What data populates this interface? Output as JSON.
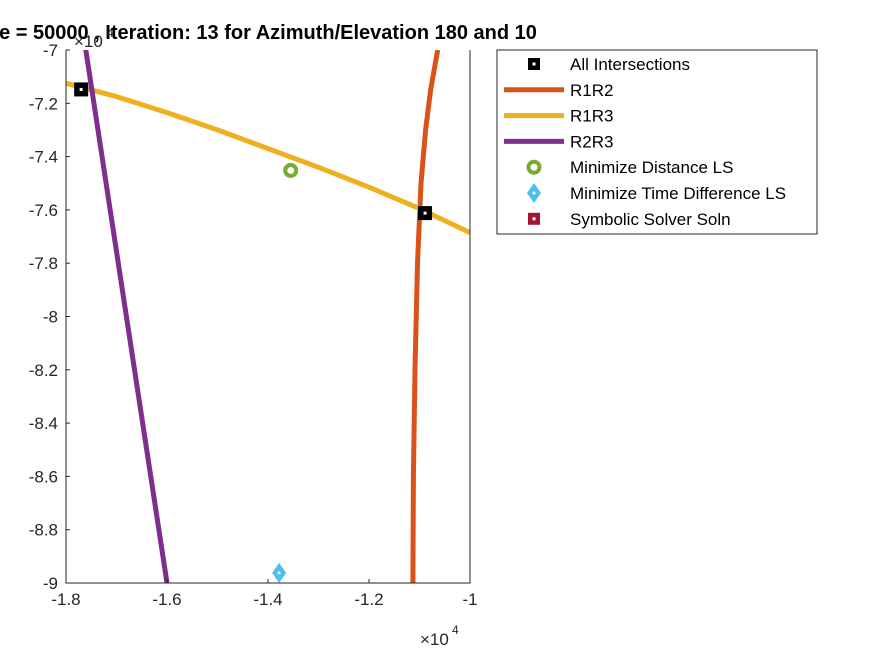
{
  "chart_data": {
    "type": "line",
    "title": "e = 50000 , Iteration: 13 for Azimuth/Elevation 180 and 10",
    "xlabel": "",
    "ylabel": "",
    "xlim": [
      -1.8,
      -1.0
    ],
    "ylim": [
      -9.0,
      -7.0
    ],
    "x_exponent": {
      "base": "×10",
      "power": "4"
    },
    "y_exponent": {
      "base": "×10",
      "power": "4"
    },
    "x_ticks": [
      "-1.8",
      "-1.6",
      "-1.4",
      "-1.2",
      "-1"
    ],
    "x_tick_values": [
      -1.8,
      -1.6,
      -1.4,
      -1.2,
      -1.0
    ],
    "y_ticks": [
      "-7",
      "-7.2",
      "-7.4",
      "-7.6",
      "-7.8",
      "-8",
      "-8.2",
      "-8.4",
      "-8.6",
      "-8.8",
      "-9"
    ],
    "y_tick_values": [
      -7.0,
      -7.2,
      -7.4,
      -7.6,
      -7.8,
      -8.0,
      -8.2,
      -8.4,
      -8.6,
      -8.8,
      -9.0
    ],
    "grid": false,
    "legend_position": "outside-top-right",
    "series": [
      {
        "name": "R1R2",
        "kind": "line",
        "color": "#D95319",
        "x": [
          -1.113,
          -1.112,
          -1.109,
          -1.104,
          -1.097,
          -1.088,
          -1.078,
          -1.064
        ],
        "y": [
          -9.0,
          -8.6,
          -8.2,
          -7.8,
          -7.5,
          -7.3,
          -7.15,
          -7.0
        ]
      },
      {
        "name": "R1R3",
        "kind": "line",
        "color": "#EDB120",
        "x": [
          -1.8,
          -1.7,
          -1.6,
          -1.5,
          -1.4,
          -1.3,
          -1.2,
          -1.1,
          -1.0
        ],
        "y": [
          -7.125,
          -7.175,
          -7.235,
          -7.3,
          -7.37,
          -7.44,
          -7.515,
          -7.595,
          -7.685
        ]
      },
      {
        "name": "R2R3",
        "kind": "line",
        "color": "#7E2F8E",
        "x": [
          -1.762,
          -1.6
        ],
        "y": [
          -6.985,
          -9.0
        ]
      },
      {
        "name": "All Intersections",
        "kind": "marker",
        "marker": "square",
        "color": "#000000",
        "x": [
          -1.77,
          -1.089
        ],
        "y": [
          -7.148,
          -7.612
        ]
      },
      {
        "name": "Minimize Distance LS",
        "kind": "marker",
        "marker": "circle",
        "color": "#77AC30",
        "x": [
          -1.355
        ],
        "y": [
          -7.452
        ]
      },
      {
        "name": "Minimize Time Difference LS",
        "kind": "marker",
        "marker": "diamond",
        "color": "#4DBEEE",
        "x": [
          -1.378
        ],
        "y": [
          -8.962
        ]
      },
      {
        "name": "Symbolic Solver Soln",
        "kind": "marker",
        "marker": "square",
        "color": "#A2142F",
        "x": [],
        "y": []
      }
    ]
  }
}
